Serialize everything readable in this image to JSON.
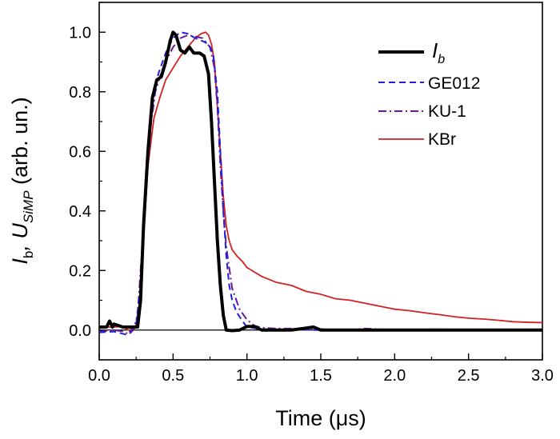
{
  "chart_data": {
    "type": "line",
    "xlabel": "Time (μs)",
    "ylabel": {
      "main": "I",
      "sub1": "b",
      "mid": ", U",
      "sub2": "SiMP",
      "tail": " (arb. un.)"
    },
    "xlim": [
      0.0,
      3.0
    ],
    "ylim": [
      -0.1,
      1.1
    ],
    "xticks": [
      "0.0",
      "0.5",
      "1.0",
      "1.5",
      "2.0",
      "2.5",
      "3.0"
    ],
    "yticks": [
      "0.0",
      "0.2",
      "0.4",
      "0.6",
      "0.8",
      "1.0"
    ],
    "grid": false,
    "legend_position": "top-right",
    "series": [
      {
        "name": "I",
        "name_sub": "b",
        "color": "#000000",
        "dash": "solid",
        "width": 4,
        "points": [
          [
            0,
            0.01
          ],
          [
            0.05,
            0.01
          ],
          [
            0.07,
            0.03
          ],
          [
            0.09,
            0.01
          ],
          [
            0.1,
            0.02
          ],
          [
            0.16,
            0.01
          ],
          [
            0.22,
            0.01
          ],
          [
            0.26,
            0.01
          ],
          [
            0.28,
            0.1
          ],
          [
            0.3,
            0.35
          ],
          [
            0.33,
            0.6
          ],
          [
            0.36,
            0.78
          ],
          [
            0.39,
            0.84
          ],
          [
            0.42,
            0.85
          ],
          [
            0.45,
            0.9
          ],
          [
            0.48,
            0.97
          ],
          [
            0.5,
            1.0
          ],
          [
            0.52,
            0.99
          ],
          [
            0.55,
            0.94
          ],
          [
            0.58,
            0.93
          ],
          [
            0.61,
            0.95
          ],
          [
            0.64,
            0.93
          ],
          [
            0.68,
            0.93
          ],
          [
            0.71,
            0.92
          ],
          [
            0.74,
            0.86
          ],
          [
            0.76,
            0.7
          ],
          [
            0.78,
            0.5
          ],
          [
            0.8,
            0.3
          ],
          [
            0.82,
            0.15
          ],
          [
            0.84,
            0.05
          ],
          [
            0.86,
            0.0
          ],
          [
            0.9,
            -0.002
          ],
          [
            0.95,
            0.0
          ],
          [
            1.0,
            0.012
          ],
          [
            1.05,
            0.012
          ],
          [
            1.1,
            0.0
          ],
          [
            1.3,
            0.0
          ],
          [
            1.45,
            0.01
          ],
          [
            1.5,
            0.0
          ],
          [
            3.0,
            0.0
          ]
        ]
      },
      {
        "name": "GE012",
        "color": "#1f1fdd",
        "dash": "dashed",
        "width": 2,
        "points": [
          [
            0,
            -0.008
          ],
          [
            0.1,
            -0.005
          ],
          [
            0.18,
            -0.015
          ],
          [
            0.22,
            0.0
          ],
          [
            0.25,
            0.02
          ],
          [
            0.28,
            0.15
          ],
          [
            0.32,
            0.5
          ],
          [
            0.36,
            0.75
          ],
          [
            0.4,
            0.86
          ],
          [
            0.45,
            0.93
          ],
          [
            0.5,
            0.98
          ],
          [
            0.55,
            1.0
          ],
          [
            0.6,
            0.995
          ],
          [
            0.65,
            0.98
          ],
          [
            0.7,
            0.97
          ],
          [
            0.74,
            0.96
          ],
          [
            0.77,
            0.93
          ],
          [
            0.8,
            0.8
          ],
          [
            0.82,
            0.6
          ],
          [
            0.84,
            0.4
          ],
          [
            0.86,
            0.25
          ],
          [
            0.88,
            0.15
          ],
          [
            0.9,
            0.1
          ],
          [
            0.93,
            0.06
          ],
          [
            0.97,
            0.03
          ],
          [
            1.0,
            0.01
          ],
          [
            1.1,
            0.003
          ],
          [
            1.5,
            0.0
          ],
          [
            2.0,
            0.0
          ],
          [
            3.0,
            0.0
          ]
        ]
      },
      {
        "name": "KU-1",
        "color": "#6a1a96",
        "dash": "dashdot",
        "width": 2,
        "points": [
          [
            0,
            -0.005
          ],
          [
            0.1,
            0.0
          ],
          [
            0.17,
            -0.005
          ],
          [
            0.2,
            -0.015
          ],
          [
            0.23,
            0.0
          ],
          [
            0.26,
            0.05
          ],
          [
            0.3,
            0.35
          ],
          [
            0.34,
            0.65
          ],
          [
            0.38,
            0.8
          ],
          [
            0.43,
            0.88
          ],
          [
            0.5,
            0.95
          ],
          [
            0.55,
            0.98
          ],
          [
            0.6,
            0.99
          ],
          [
            0.65,
            0.985
          ],
          [
            0.7,
            0.98
          ],
          [
            0.75,
            0.95
          ],
          [
            0.78,
            0.88
          ],
          [
            0.8,
            0.75
          ],
          [
            0.82,
            0.55
          ],
          [
            0.84,
            0.4
          ],
          [
            0.86,
            0.28
          ],
          [
            0.9,
            0.14
          ],
          [
            0.95,
            0.07
          ],
          [
            1.0,
            0.035
          ],
          [
            1.05,
            0.015
          ],
          [
            1.1,
            0.008
          ],
          [
            1.2,
            0.005
          ],
          [
            1.3,
            0.005
          ],
          [
            1.4,
            0.002
          ],
          [
            1.5,
            0.003
          ],
          [
            1.7,
            0.0
          ],
          [
            1.8,
            0.005
          ],
          [
            2.0,
            0.0
          ],
          [
            2.3,
            0.003
          ],
          [
            2.5,
            0.0
          ],
          [
            3.0,
            0.0
          ]
        ]
      },
      {
        "name": "KBr",
        "color": "#d42020",
        "dash": "solid",
        "width": 1.8,
        "points": [
          [
            0,
            0.01
          ],
          [
            0.1,
            0.01
          ],
          [
            0.15,
            0.012
          ],
          [
            0.2,
            0.0
          ],
          [
            0.24,
            0.005
          ],
          [
            0.27,
            0.05
          ],
          [
            0.3,
            0.3
          ],
          [
            0.33,
            0.55
          ],
          [
            0.37,
            0.71
          ],
          [
            0.41,
            0.78
          ],
          [
            0.45,
            0.84
          ],
          [
            0.5,
            0.88
          ],
          [
            0.55,
            0.92
          ],
          [
            0.6,
            0.95
          ],
          [
            0.65,
            0.98
          ],
          [
            0.69,
            0.995
          ],
          [
            0.72,
            1.0
          ],
          [
            0.74,
            0.99
          ],
          [
            0.76,
            0.96
          ],
          [
            0.78,
            0.9
          ],
          [
            0.8,
            0.75
          ],
          [
            0.82,
            0.6
          ],
          [
            0.84,
            0.45
          ],
          [
            0.86,
            0.35
          ],
          [
            0.88,
            0.3
          ],
          [
            0.9,
            0.27
          ],
          [
            0.93,
            0.25
          ],
          [
            0.97,
            0.23
          ],
          [
            1.0,
            0.21
          ],
          [
            1.05,
            0.195
          ],
          [
            1.1,
            0.18
          ],
          [
            1.2,
            0.16
          ],
          [
            1.3,
            0.15
          ],
          [
            1.4,
            0.13
          ],
          [
            1.5,
            0.12
          ],
          [
            1.6,
            0.105
          ],
          [
            1.7,
            0.1
          ],
          [
            1.8,
            0.09
          ],
          [
            1.9,
            0.08
          ],
          [
            2.0,
            0.07
          ],
          [
            2.1,
            0.065
          ],
          [
            2.2,
            0.058
          ],
          [
            2.3,
            0.052
          ],
          [
            2.4,
            0.045
          ],
          [
            2.5,
            0.04
          ],
          [
            2.6,
            0.037
          ],
          [
            2.7,
            0.033
          ],
          [
            2.8,
            0.028
          ],
          [
            2.9,
            0.026
          ],
          [
            3.0,
            0.025
          ]
        ]
      }
    ]
  }
}
